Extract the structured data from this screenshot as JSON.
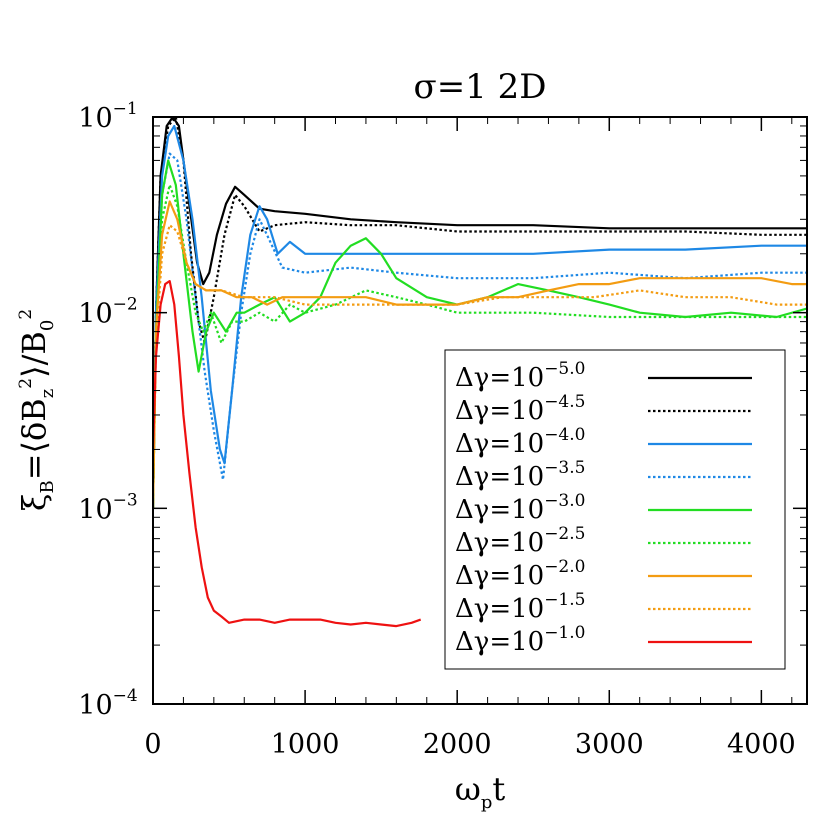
{
  "chart_data": {
    "type": "line",
    "title": "σ=1  2D",
    "xlabel": "ω_p t",
    "ylabel": "ξ_B=⟨δB_z²⟩/B_0²",
    "xlim": [
      0,
      4300
    ],
    "ylim": [
      0.0001,
      0.1
    ],
    "yscale": "log",
    "x_ticks": [
      0,
      1000,
      2000,
      3000,
      4000
    ],
    "y_ticks": [
      {
        "value": 0.1,
        "base": "10",
        "exp": "−1"
      },
      {
        "value": 0.01,
        "base": "10",
        "exp": "−2"
      },
      {
        "value": 0.001,
        "base": "10",
        "exp": "−3"
      },
      {
        "value": 0.0001,
        "base": "10",
        "exp": "−4"
      }
    ],
    "legend_position": "bottom-right",
    "series": [
      {
        "name": "Δγ=10^-5.0",
        "label_base": "Δγ=10",
        "label_exp": "−5.0",
        "color": "#000000",
        "dash": "solid",
        "points": [
          [
            0,
            0.001
          ],
          [
            20,
            0.01
          ],
          [
            50,
            0.05
          ],
          [
            90,
            0.09
          ],
          [
            130,
            0.1
          ],
          [
            170,
            0.09
          ],
          [
            230,
            0.04
          ],
          [
            290,
            0.018
          ],
          [
            330,
            0.014
          ],
          [
            370,
            0.016
          ],
          [
            420,
            0.025
          ],
          [
            480,
            0.036
          ],
          [
            540,
            0.044
          ],
          [
            600,
            0.04
          ],
          [
            700,
            0.034
          ],
          [
            800,
            0.033
          ],
          [
            1000,
            0.032
          ],
          [
            1300,
            0.03
          ],
          [
            1600,
            0.029
          ],
          [
            2000,
            0.028
          ],
          [
            2500,
            0.028
          ],
          [
            3000,
            0.027
          ],
          [
            3500,
            0.027
          ],
          [
            4000,
            0.027
          ],
          [
            4300,
            0.027
          ]
        ]
      },
      {
        "name": "Δγ=10^-4.5",
        "label_base": "Δγ=10",
        "label_exp": "−4.5",
        "color": "#000000",
        "dash": "dotted",
        "points": [
          [
            0,
            0.001
          ],
          [
            20,
            0.01
          ],
          [
            50,
            0.05
          ],
          [
            100,
            0.09
          ],
          [
            150,
            0.1
          ],
          [
            200,
            0.06
          ],
          [
            250,
            0.02
          ],
          [
            300,
            0.009
          ],
          [
            340,
            0.007
          ],
          [
            400,
            0.012
          ],
          [
            470,
            0.025
          ],
          [
            540,
            0.04
          ],
          [
            600,
            0.035
          ],
          [
            700,
            0.026
          ],
          [
            800,
            0.028
          ],
          [
            1000,
            0.029
          ],
          [
            1300,
            0.028
          ],
          [
            1600,
            0.028
          ],
          [
            2000,
            0.026
          ],
          [
            2500,
            0.026
          ],
          [
            3000,
            0.026
          ],
          [
            3500,
            0.026
          ],
          [
            4000,
            0.025
          ],
          [
            4300,
            0.025
          ]
        ]
      },
      {
        "name": "Δγ=10^-4.0",
        "label_base": "Δγ=10",
        "label_exp": "−4.0",
        "color": "#1E88E5",
        "dash": "solid",
        "points": [
          [
            0,
            0.001
          ],
          [
            20,
            0.01
          ],
          [
            60,
            0.05
          ],
          [
            100,
            0.08
          ],
          [
            140,
            0.09
          ],
          [
            200,
            0.06
          ],
          [
            260,
            0.03
          ],
          [
            320,
            0.012
          ],
          [
            380,
            0.004
          ],
          [
            440,
            0.002
          ],
          [
            470,
            0.0017
          ],
          [
            520,
            0.004
          ],
          [
            580,
            0.012
          ],
          [
            640,
            0.025
          ],
          [
            700,
            0.035
          ],
          [
            750,
            0.03
          ],
          [
            820,
            0.02
          ],
          [
            900,
            0.023
          ],
          [
            1000,
            0.02
          ],
          [
            1300,
            0.02
          ],
          [
            1600,
            0.02
          ],
          [
            2000,
            0.02
          ],
          [
            2500,
            0.02
          ],
          [
            3000,
            0.021
          ],
          [
            3500,
            0.021
          ],
          [
            4000,
            0.022
          ],
          [
            4300,
            0.022
          ]
        ]
      },
      {
        "name": "Δγ=10^-3.5",
        "label_base": "Δγ=10",
        "label_exp": "−3.5",
        "color": "#1E88E5",
        "dash": "dotted",
        "points": [
          [
            0,
            0.001
          ],
          [
            20,
            0.01
          ],
          [
            60,
            0.04
          ],
          [
            110,
            0.065
          ],
          [
            160,
            0.06
          ],
          [
            220,
            0.03
          ],
          [
            280,
            0.012
          ],
          [
            340,
            0.005
          ],
          [
            400,
            0.0025
          ],
          [
            460,
            0.0014
          ],
          [
            520,
            0.004
          ],
          [
            580,
            0.01
          ],
          [
            640,
            0.02
          ],
          [
            700,
            0.03
          ],
          [
            760,
            0.024
          ],
          [
            850,
            0.017
          ],
          [
            1000,
            0.016
          ],
          [
            1300,
            0.017
          ],
          [
            1600,
            0.016
          ],
          [
            2000,
            0.015
          ],
          [
            2500,
            0.015
          ],
          [
            3000,
            0.016
          ],
          [
            3500,
            0.015
          ],
          [
            4000,
            0.016
          ],
          [
            4300,
            0.016
          ]
        ]
      },
      {
        "name": "Δγ=10^-3.0",
        "label_base": "Δγ=10",
        "label_exp": "−3.0",
        "color": "#22DD22",
        "dash": "solid",
        "points": [
          [
            0,
            0.001
          ],
          [
            20,
            0.008
          ],
          [
            60,
            0.04
          ],
          [
            100,
            0.06
          ],
          [
            150,
            0.045
          ],
          [
            200,
            0.02
          ],
          [
            260,
            0.008
          ],
          [
            300,
            0.005
          ],
          [
            350,
            0.008
          ],
          [
            400,
            0.01
          ],
          [
            480,
            0.008
          ],
          [
            550,
            0.01
          ],
          [
            600,
            0.01
          ],
          [
            700,
            0.011
          ],
          [
            800,
            0.012
          ],
          [
            900,
            0.009
          ],
          [
            1000,
            0.01
          ],
          [
            1100,
            0.012
          ],
          [
            1200,
            0.018
          ],
          [
            1300,
            0.022
          ],
          [
            1400,
            0.024
          ],
          [
            1500,
            0.02
          ],
          [
            1600,
            0.015
          ],
          [
            1800,
            0.012
          ],
          [
            2000,
            0.011
          ],
          [
            2200,
            0.012
          ],
          [
            2400,
            0.014
          ],
          [
            2600,
            0.013
          ],
          [
            2800,
            0.012
          ],
          [
            3000,
            0.011
          ],
          [
            3200,
            0.01
          ],
          [
            3500,
            0.0095
          ],
          [
            3800,
            0.01
          ],
          [
            4100,
            0.0095
          ],
          [
            4300,
            0.0105
          ]
        ]
      },
      {
        "name": "Δγ=10^-2.5",
        "label_base": "Δγ=10",
        "label_exp": "−2.5",
        "color": "#22DD22",
        "dash": "dotted",
        "points": [
          [
            0,
            0.001
          ],
          [
            20,
            0.008
          ],
          [
            60,
            0.03
          ],
          [
            110,
            0.045
          ],
          [
            160,
            0.035
          ],
          [
            220,
            0.018
          ],
          [
            280,
            0.01
          ],
          [
            330,
            0.008
          ],
          [
            380,
            0.01
          ],
          [
            450,
            0.007
          ],
          [
            520,
            0.009
          ],
          [
            600,
            0.009
          ],
          [
            700,
            0.01
          ],
          [
            800,
            0.009
          ],
          [
            900,
            0.011
          ],
          [
            1000,
            0.01
          ],
          [
            1200,
            0.011
          ],
          [
            1400,
            0.013
          ],
          [
            1600,
            0.012
          ],
          [
            1800,
            0.011
          ],
          [
            2000,
            0.01
          ],
          [
            2500,
            0.01
          ],
          [
            3000,
            0.0095
          ],
          [
            3500,
            0.0095
          ],
          [
            4000,
            0.0095
          ],
          [
            4300,
            0.0095
          ]
        ]
      },
      {
        "name": "Δγ=10^-2.0",
        "label_base": "Δγ=10",
        "label_exp": "−2.0",
        "color": "#F39C12",
        "dash": "solid",
        "points": [
          [
            0,
            0.001
          ],
          [
            20,
            0.008
          ],
          [
            60,
            0.025
          ],
          [
            110,
            0.037
          ],
          [
            160,
            0.03
          ],
          [
            220,
            0.018
          ],
          [
            280,
            0.014
          ],
          [
            350,
            0.013
          ],
          [
            450,
            0.013
          ],
          [
            550,
            0.012
          ],
          [
            650,
            0.012
          ],
          [
            750,
            0.011
          ],
          [
            850,
            0.012
          ],
          [
            1000,
            0.012
          ],
          [
            1200,
            0.012
          ],
          [
            1400,
            0.012
          ],
          [
            1600,
            0.011
          ],
          [
            1800,
            0.011
          ],
          [
            2000,
            0.011
          ],
          [
            2200,
            0.012
          ],
          [
            2400,
            0.012
          ],
          [
            2600,
            0.013
          ],
          [
            2800,
            0.014
          ],
          [
            3000,
            0.014
          ],
          [
            3200,
            0.015
          ],
          [
            3400,
            0.015
          ],
          [
            3600,
            0.015
          ],
          [
            3800,
            0.015
          ],
          [
            4000,
            0.015
          ],
          [
            4200,
            0.014
          ],
          [
            4300,
            0.014
          ]
        ]
      },
      {
        "name": "Δγ=10^-1.5",
        "label_base": "Δγ=10",
        "label_exp": "−1.5",
        "color": "#F39C12",
        "dash": "dotted",
        "points": [
          [
            0,
            0.001
          ],
          [
            20,
            0.007
          ],
          [
            60,
            0.02
          ],
          [
            110,
            0.028
          ],
          [
            160,
            0.026
          ],
          [
            220,
            0.018
          ],
          [
            280,
            0.014
          ],
          [
            350,
            0.013
          ],
          [
            450,
            0.013
          ],
          [
            600,
            0.012
          ],
          [
            800,
            0.012
          ],
          [
            1000,
            0.011
          ],
          [
            1200,
            0.011
          ],
          [
            1500,
            0.011
          ],
          [
            1800,
            0.011
          ],
          [
            2000,
            0.011
          ],
          [
            2300,
            0.012
          ],
          [
            2600,
            0.012
          ],
          [
            2900,
            0.012
          ],
          [
            3200,
            0.013
          ],
          [
            3500,
            0.012
          ],
          [
            3800,
            0.012
          ],
          [
            4100,
            0.011
          ],
          [
            4300,
            0.011
          ]
        ]
      },
      {
        "name": "Δγ=10^-1.0",
        "label_base": "Δγ=10",
        "label_exp": "−1.0",
        "color": "#EE1111",
        "dash": "solid",
        "points": [
          [
            0,
            0.002
          ],
          [
            20,
            0.006
          ],
          [
            50,
            0.011
          ],
          [
            80,
            0.014
          ],
          [
            110,
            0.0145
          ],
          [
            140,
            0.011
          ],
          [
            170,
            0.006
          ],
          [
            200,
            0.003
          ],
          [
            240,
            0.0015
          ],
          [
            280,
            0.0008
          ],
          [
            320,
            0.0005
          ],
          [
            360,
            0.00035
          ],
          [
            400,
            0.0003
          ],
          [
            450,
            0.00028
          ],
          [
            500,
            0.00026
          ],
          [
            600,
            0.00027
          ],
          [
            700,
            0.00027
          ],
          [
            800,
            0.00026
          ],
          [
            900,
            0.00027
          ],
          [
            1000,
            0.00027
          ],
          [
            1100,
            0.00027
          ],
          [
            1200,
            0.00026
          ],
          [
            1300,
            0.000255
          ],
          [
            1400,
            0.00026
          ],
          [
            1500,
            0.000255
          ],
          [
            1600,
            0.00025
          ],
          [
            1700,
            0.00026
          ],
          [
            1760,
            0.00027
          ]
        ]
      }
    ]
  }
}
